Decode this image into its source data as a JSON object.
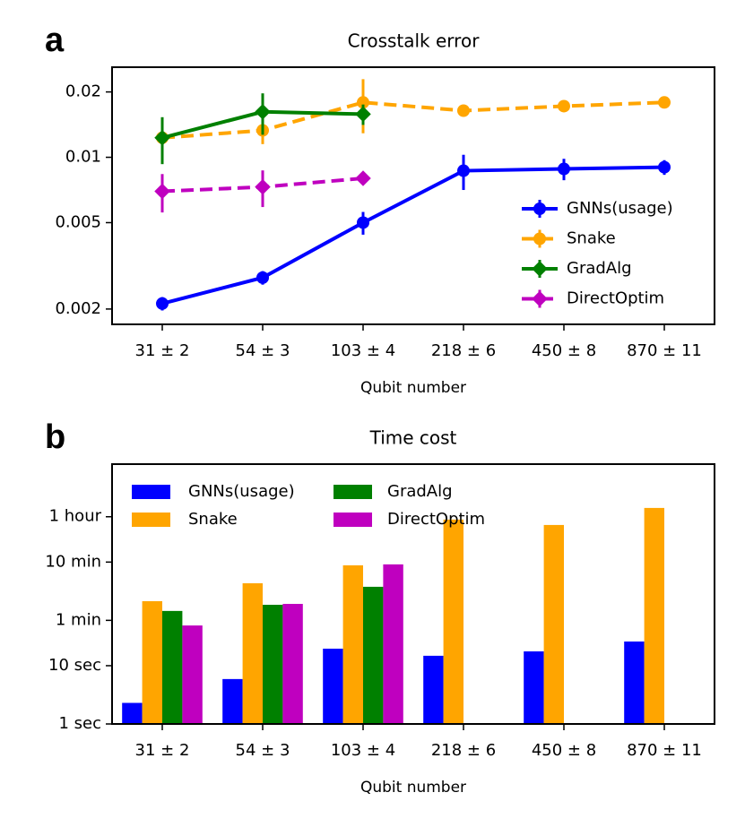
{
  "chart_data": [
    {
      "type": "line",
      "panel_label": "a",
      "title": "Crosstalk error",
      "xlabel": "Qubit number",
      "categories": [
        "31 ± 2",
        "54 ± 3",
        "103 ± 4",
        "218 ± 6",
        "450 ± 8",
        "870 ± 11"
      ],
      "log_y": true,
      "ylim": [
        0.0017,
        0.026
      ],
      "yticks": [
        0.002,
        0.005,
        0.01,
        0.02
      ],
      "legend": "lower right",
      "series": [
        {
          "name": "GNNs(usage)",
          "color": "#0000ff",
          "linestyle": "solid",
          "marker": "o",
          "values": [
            0.00212,
            0.00279,
            0.005,
            0.00867,
            0.00884,
            0.009
          ],
          "errors": [
            0.00015,
            0.0002,
            0.0006,
            0.0016,
            0.001,
            0.0007
          ]
        },
        {
          "name": "Snake",
          "color": "#ffa500",
          "linestyle": "dashed",
          "marker": "o",
          "values": [
            0.0123,
            0.0133,
            0.0179,
            0.0164,
            0.0172,
            0.0179
          ],
          "errors": [
            0.0004,
            0.0018,
            0.005,
            0.0004,
            0.0004,
            0.0004
          ]
        },
        {
          "name": "GradAlg",
          "color": "#008000",
          "linestyle": "solid",
          "marker": "D",
          "values": [
            0.0123,
            0.0162,
            0.0158,
            null,
            null,
            null
          ],
          "errors": [
            0.003,
            0.0035,
            0.0017,
            null,
            null,
            null
          ]
        },
        {
          "name": "DirectOptim",
          "color": "#bf00bf",
          "linestyle": "dashed",
          "marker": "D",
          "values": [
            0.00697,
            0.0073,
            0.008,
            null,
            null,
            null
          ],
          "errors": [
            0.0014,
            0.0014,
            0.0003,
            null,
            null,
            null
          ]
        }
      ]
    },
    {
      "type": "bar",
      "panel_label": "b",
      "title": "Time cost",
      "xlabel": "Qubit number",
      "categories": [
        "31 ± 2",
        "54 ± 3",
        "103 ± 4",
        "218 ± 6",
        "450 ± 8",
        "870 ± 11"
      ],
      "log_y": true,
      "ylim": [
        1,
        28800
      ],
      "yticks": [
        {
          "value": 1,
          "label": "1 sec"
        },
        {
          "value": 10,
          "label": "10 sec"
        },
        {
          "value": 60,
          "label": "1 min"
        },
        {
          "value": 600,
          "label": "10 min"
        },
        {
          "value": 3600,
          "label": "1 hour"
        }
      ],
      "legend": "upper left",
      "series": [
        {
          "name": "GNNs(usage)",
          "color": "#0000ff",
          "values": [
            2.3,
            5.9,
            19.6,
            14.8,
            17.6,
            26
          ]
        },
        {
          "name": "Snake",
          "color": "#ffa500",
          "values": [
            128,
            260,
            528,
            3220,
            2600,
            5100
          ]
        },
        {
          "name": "GradAlg",
          "color": "#008000",
          "values": [
            87,
            111,
            226,
            null,
            null,
            null
          ]
        },
        {
          "name": "DirectOptim",
          "color": "#bf00bf",
          "values": [
            49,
            115,
            548,
            null,
            null,
            null
          ]
        }
      ]
    }
  ]
}
